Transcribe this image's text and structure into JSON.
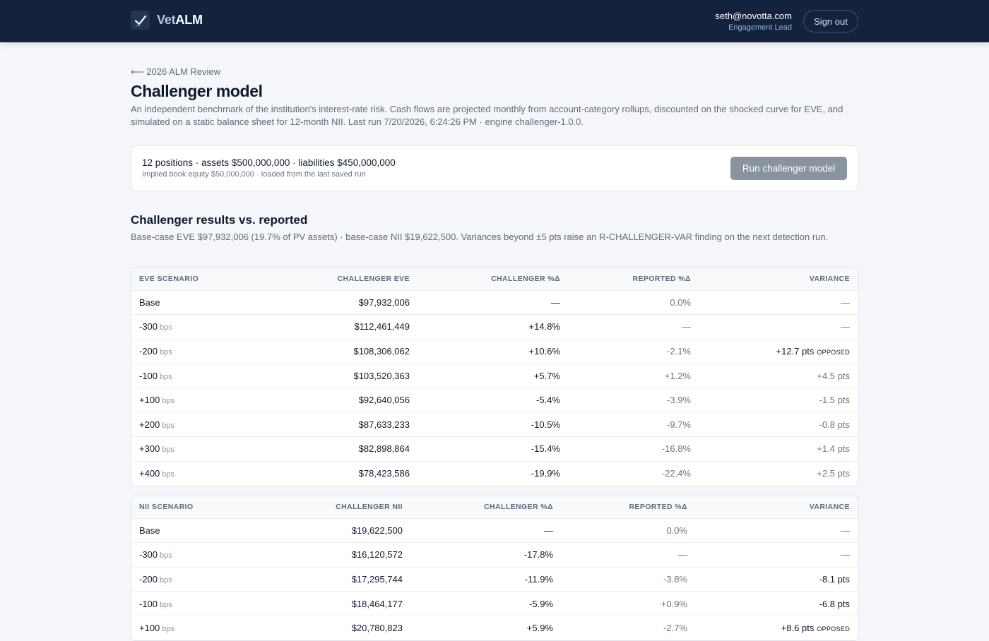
{
  "app": {
    "brand_a": "Vet",
    "brand_b": "ALM",
    "logo_icon": "checkmark-icon"
  },
  "user": {
    "email": "seth@novotta.com",
    "role": "Engagement Lead",
    "signout_label": "Sign out"
  },
  "breadcrumb": {
    "arrow": "⟵",
    "label": "2026 ALM Review"
  },
  "page": {
    "title": "Challenger model",
    "description": "An independent benchmark of the institution's interest-rate risk. Cash flows are projected monthly from account-category rollups, discounted on the shocked curve for EVE, and simulated on a static balance sheet for 12-month NII. Last run 7/20/2026, 6:24:26 PM · engine challenger-1.0.0."
  },
  "summary": {
    "main": "12 positions · assets $500,000,000 · liabilities $450,000,000",
    "sub": "Implied book equity $50,000,000 · loaded from the last saved run",
    "run_label": "Run challenger model"
  },
  "results": {
    "title": "Challenger results vs. reported",
    "description": "Base-case EVE $97,932,006 (19.7% of PV assets) · base-case NII $19,622,500. Variances beyond ±5 pts raise an R-CHALLENGER-VAR finding on the next detection run."
  },
  "eve": {
    "headers": [
      "EVE SCENARIO",
      "CHALLENGER EVE",
      "CHALLENGER %Δ",
      "REPORTED %Δ",
      "VARIANCE"
    ],
    "rows": [
      {
        "scenario": "Base",
        "unit": "",
        "value": "$97,932,006",
        "chg": "—",
        "reported": "0.0%",
        "variance": "—",
        "flag": "",
        "tone": "muted"
      },
      {
        "scenario": "-300",
        "unit": "bps",
        "value": "$112,461,449",
        "chg": "+14.8%",
        "reported": "—",
        "variance": "—",
        "flag": "",
        "tone": "muted"
      },
      {
        "scenario": "-200",
        "unit": "bps",
        "value": "$108,306,062",
        "chg": "+10.6%",
        "reported": "-2.1%",
        "variance": "+12.7 pts",
        "flag": "OPPOSED",
        "tone": "opp"
      },
      {
        "scenario": "-100",
        "unit": "bps",
        "value": "$103,520,363",
        "chg": "+5.7%",
        "reported": "+1.2%",
        "variance": "+4.5 pts",
        "flag": "",
        "tone": "muted"
      },
      {
        "scenario": "+100",
        "unit": "bps",
        "value": "$92,640,056",
        "chg": "-5.4%",
        "reported": "-3.9%",
        "variance": "-1.5 pts",
        "flag": "",
        "tone": "muted"
      },
      {
        "scenario": "+200",
        "unit": "bps",
        "value": "$87,633,233",
        "chg": "-10.5%",
        "reported": "-9.7%",
        "variance": "-0.8 pts",
        "flag": "",
        "tone": "muted"
      },
      {
        "scenario": "+300",
        "unit": "bps",
        "value": "$82,898,864",
        "chg": "-15.4%",
        "reported": "-16.8%",
        "variance": "+1.4 pts",
        "flag": "",
        "tone": "muted"
      },
      {
        "scenario": "+400",
        "unit": "bps",
        "value": "$78,423,586",
        "chg": "-19.9%",
        "reported": "-22.4%",
        "variance": "+2.5 pts",
        "flag": "",
        "tone": "muted"
      }
    ]
  },
  "nii": {
    "headers": [
      "NII SCENARIO",
      "CHALLENGER NII",
      "CHALLENGER %Δ",
      "REPORTED %Δ",
      "VARIANCE"
    ],
    "rows": [
      {
        "scenario": "Base",
        "unit": "",
        "value": "$19,622,500",
        "chg": "—",
        "reported": "0.0%",
        "variance": "—",
        "flag": "",
        "tone": "muted"
      },
      {
        "scenario": "-300",
        "unit": "bps",
        "value": "$16,120,572",
        "chg": "-17.8%",
        "reported": "—",
        "variance": "—",
        "flag": "",
        "tone": "muted"
      },
      {
        "scenario": "-200",
        "unit": "bps",
        "value": "$17,295,744",
        "chg": "-11.9%",
        "reported": "-3.8%",
        "variance": "-8.1 pts",
        "flag": "",
        "tone": "warn"
      },
      {
        "scenario": "-100",
        "unit": "bps",
        "value": "$18,464,177",
        "chg": "-5.9%",
        "reported": "+0.9%",
        "variance": "-6.8 pts",
        "flag": "",
        "tone": "warn"
      },
      {
        "scenario": "+100",
        "unit": "bps",
        "value": "$20,780,823",
        "chg": "+5.9%",
        "reported": "-2.7%",
        "variance": "+8.6 pts",
        "flag": "OPPOSED",
        "tone": "opp"
      }
    ]
  },
  "colors": {
    "navbar": "#13233d",
    "background": "#f4f6f9",
    "opposed": "#a51d1d",
    "warning": "#c2410c",
    "button_disabled": "#8a949f"
  }
}
